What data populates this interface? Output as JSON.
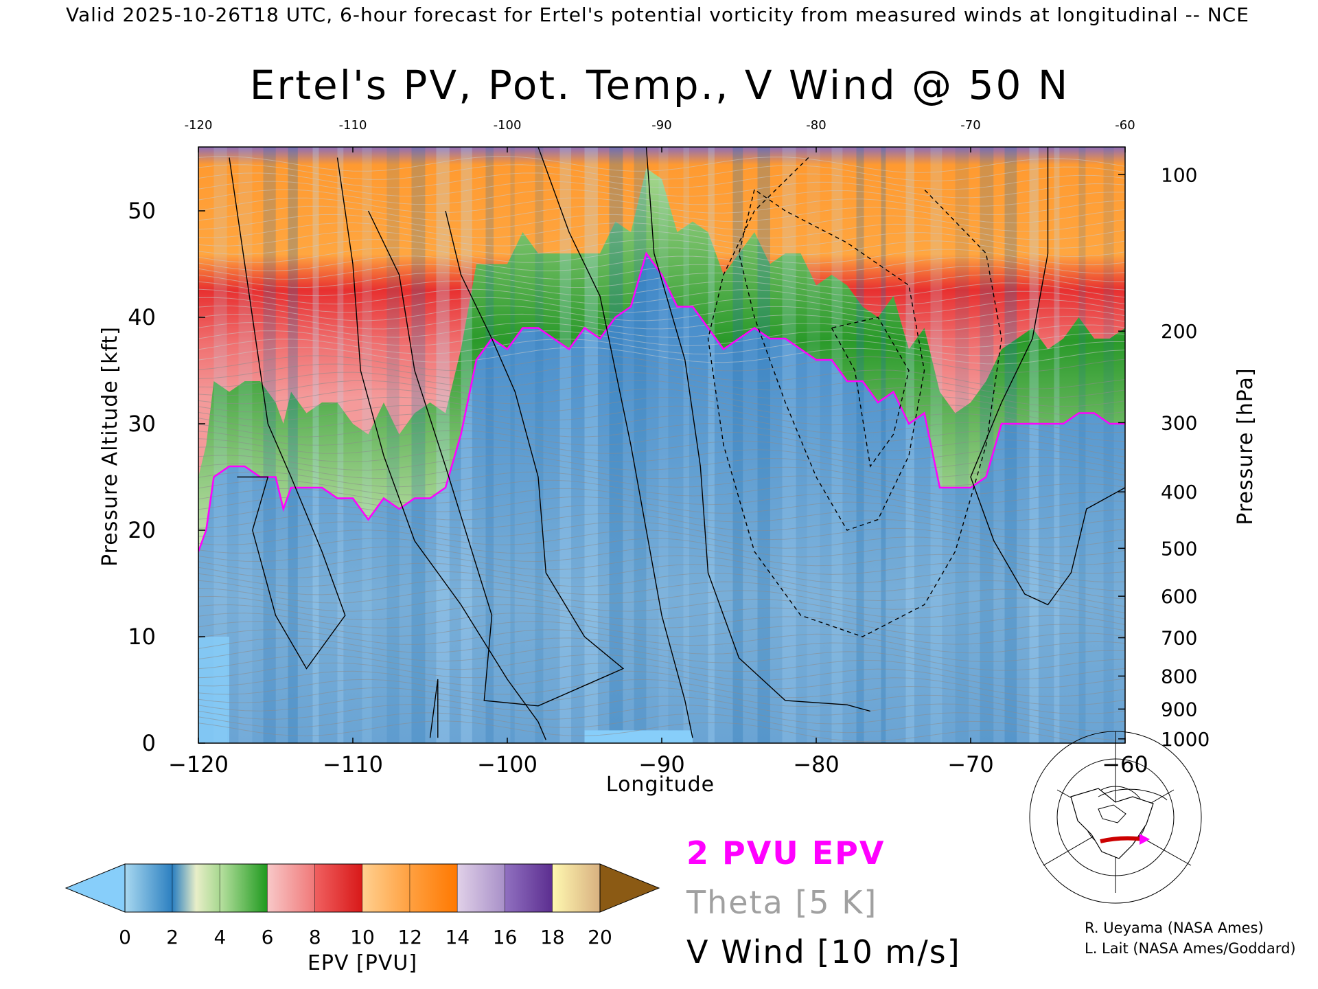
{
  "header": "Valid 2025-10-26T18 UTC, 6-hour forecast for Ertel's potential vorticity from measured winds at longitudinal -- NCE",
  "chart_data": {
    "type": "heatmap",
    "title": "Ertel's PV, Pot. Temp., V Wind @ 50 N",
    "xlabel": "Longitude",
    "ylabel": "Pressure Altitude [kft]",
    "y2label": "Pressure [hPa]",
    "xlim": [
      -120,
      -60
    ],
    "ylim": [
      0,
      56
    ],
    "x_ticks": [
      -120,
      -110,
      -100,
      -90,
      -80,
      -70,
      -60
    ],
    "x_tick_labels": [
      "−120",
      "−110",
      "−100",
      "−90",
      "−80",
      "−70",
      "−60"
    ],
    "x_tick_labels_top": [
      "-120",
      "-110",
      "-100",
      "-90",
      "-80",
      "-70",
      "-60"
    ],
    "y_ticks": [
      0,
      10,
      20,
      30,
      40,
      50
    ],
    "pressure_ticks": [
      {
        "label": "100",
        "kft": 53.4
      },
      {
        "label": "200",
        "kft": 38.7
      },
      {
        "label": "300",
        "kft": 30.1
      },
      {
        "label": "400",
        "kft": 23.6
      },
      {
        "label": "500",
        "kft": 18.3
      },
      {
        "label": "600",
        "kft": 13.8
      },
      {
        "label": "700",
        "kft": 9.9
      },
      {
        "label": "800",
        "kft": 6.3
      },
      {
        "label": "900",
        "kft": 3.2
      },
      {
        "label": "1000",
        "kft": 0.4
      }
    ],
    "tropopause_2pvu_kft": {
      "lon": [
        -120,
        -119.5,
        -119,
        -118,
        -117,
        -116,
        -115,
        -114.5,
        -114,
        -113,
        -112,
        -111,
        -110,
        -109,
        -108,
        -107,
        -106,
        -105,
        -104,
        -103,
        -102,
        -101,
        -100,
        -99,
        -98,
        -97,
        -96,
        -95,
        -94,
        -93,
        -92,
        -91,
        -90,
        -89,
        -88,
        -87,
        -86,
        -85,
        -84,
        -83,
        -82,
        -81,
        -80,
        -79,
        -78,
        -77,
        -76,
        -75,
        -74,
        -73,
        -72,
        -71,
        -70,
        -69,
        -68,
        -67,
        -66,
        -65,
        -64,
        -63,
        -62,
        -61,
        -60
      ],
      "kft": [
        18,
        20,
        25,
        26,
        26,
        25,
        25,
        22,
        24,
        24,
        24,
        23,
        23,
        21,
        23,
        22,
        23,
        23,
        24,
        29,
        36,
        38,
        37,
        39,
        39,
        38,
        37,
        39,
        38,
        40,
        41,
        46,
        44,
        41,
        41,
        39,
        37,
        38,
        39,
        38,
        38,
        37,
        36,
        36,
        34,
        34,
        32,
        33,
        30,
        31,
        24,
        24,
        24,
        25,
        30,
        30,
        30,
        30,
        30,
        31,
        31,
        30,
        30
      ]
    },
    "colorbar": {
      "label": "EPV [PVU]",
      "ticks": [
        0,
        2,
        4,
        6,
        8,
        10,
        12,
        14,
        16,
        18,
        20
      ],
      "under_color": "#87cefa",
      "over_color": "#8b5a14",
      "segments": [
        {
          "from": 0,
          "to": 2,
          "colors": [
            "#a8d8f0",
            "#2b7fc0"
          ]
        },
        {
          "from": 2,
          "to": 4,
          "colors": [
            "#2b7fc0",
            "#e8eec8",
            "#a8d890"
          ]
        },
        {
          "from": 4,
          "to": 6,
          "colors": [
            "#b8e0a0",
            "#1e9a1e"
          ]
        },
        {
          "from": 6,
          "to": 8,
          "colors": [
            "#f8c8c8",
            "#f07878"
          ]
        },
        {
          "from": 8,
          "to": 10,
          "colors": [
            "#f06060",
            "#d81818"
          ]
        },
        {
          "from": 10,
          "to": 12,
          "colors": [
            "#ffd090",
            "#ffa040"
          ]
        },
        {
          "from": 12,
          "to": 14,
          "colors": [
            "#ffa040",
            "#ff7800"
          ]
        },
        {
          "from": 14,
          "to": 16,
          "colors": [
            "#e0d0e8",
            "#a890c8"
          ]
        },
        {
          "from": 16,
          "to": 18,
          "colors": [
            "#9070c0",
            "#5c2e90"
          ]
        },
        {
          "from": 18,
          "to": 20,
          "colors": [
            "#fff8b0",
            "#d8b080"
          ]
        }
      ]
    }
  },
  "legend": {
    "epv": "2 PVU EPV",
    "theta": "Theta [5 K]",
    "wind": "V Wind [10 m/s]",
    "epv_color": "#ff00ff",
    "theta_color": "#a0a0a0",
    "wind_color": "#000000"
  },
  "credits": [
    "R. Ueyama (NASA Ames)",
    "L. Lait (NASA Ames/Goddard)"
  ]
}
